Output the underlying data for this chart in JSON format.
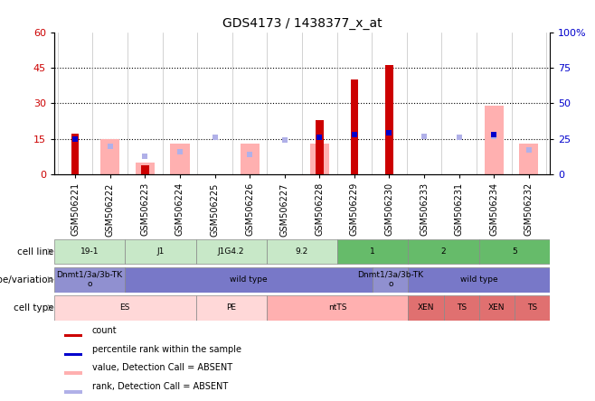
{
  "title": "GDS4173 / 1438377_x_at",
  "samples": [
    "GSM506221",
    "GSM506222",
    "GSM506223",
    "GSM506224",
    "GSM506225",
    "GSM506226",
    "GSM506227",
    "GSM506228",
    "GSM506229",
    "GSM506230",
    "GSM506233",
    "GSM506231",
    "GSM506234",
    "GSM506232"
  ],
  "count_values": [
    17,
    0,
    4,
    0,
    0,
    0,
    0,
    23,
    40,
    46,
    0,
    0,
    0,
    0
  ],
  "percentile_rank": [
    25,
    0,
    0,
    0,
    0,
    0,
    0,
    26,
    28,
    29,
    0,
    0,
    28,
    0
  ],
  "absent_value": [
    0,
    15,
    5,
    13,
    0,
    13,
    0,
    13,
    0,
    0,
    0,
    0,
    29,
    13
  ],
  "absent_rank": [
    0,
    20,
    13,
    16,
    26,
    14,
    24,
    0,
    0,
    0,
    27,
    26,
    27,
    17
  ],
  "ylim_left": [
    0,
    60
  ],
  "ylim_right": [
    0,
    100
  ],
  "yticks_left": [
    0,
    15,
    30,
    45,
    60
  ],
  "yticks_right": [
    0,
    25,
    50,
    75,
    100
  ],
  "color_count": "#cc0000",
  "color_percentile": "#0000cc",
  "color_absent_value": "#ffb0b0",
  "color_absent_rank": "#b0b0e8",
  "cell_lines": [
    {
      "label": "19-1",
      "start": 0,
      "end": 2,
      "color": "#c8e8c8"
    },
    {
      "label": "J1",
      "start": 2,
      "end": 4,
      "color": "#c8e8c8"
    },
    {
      "label": "J1G4.2",
      "start": 4,
      "end": 6,
      "color": "#c8e8c8"
    },
    {
      "label": "9.2",
      "start": 6,
      "end": 8,
      "color": "#c8e8c8"
    },
    {
      "label": "1",
      "start": 8,
      "end": 10,
      "color": "#66bb6a"
    },
    {
      "label": "2",
      "start": 10,
      "end": 12,
      "color": "#66bb6a"
    },
    {
      "label": "5",
      "start": 12,
      "end": 14,
      "color": "#66bb6a"
    }
  ],
  "genotypes": [
    {
      "label": "Dnmt1/3a/3b-TK\no",
      "start": 0,
      "end": 2,
      "color": "#9090d0"
    },
    {
      "label": "wild type",
      "start": 2,
      "end": 9,
      "color": "#7878c8"
    },
    {
      "label": "Dnmt1/3a/3b-TK\no",
      "start": 9,
      "end": 10,
      "color": "#9090d0"
    },
    {
      "label": "wild type",
      "start": 10,
      "end": 14,
      "color": "#7878c8"
    }
  ],
  "cell_types": [
    {
      "label": "ES",
      "start": 0,
      "end": 4,
      "color": "#ffd8d8"
    },
    {
      "label": "PE",
      "start": 4,
      "end": 6,
      "color": "#ffd8d8"
    },
    {
      "label": "ntTS",
      "start": 6,
      "end": 10,
      "color": "#ffb0b0"
    },
    {
      "label": "XEN",
      "start": 10,
      "end": 11,
      "color": "#e07070"
    },
    {
      "label": "TS",
      "start": 11,
      "end": 12,
      "color": "#e07070"
    },
    {
      "label": "XEN",
      "start": 12,
      "end": 13,
      "color": "#e07070"
    },
    {
      "label": "TS",
      "start": 13,
      "end": 14,
      "color": "#e07070"
    }
  ],
  "bg_color": "#ffffff",
  "tick_label_fontsize": 7,
  "row_label_fontsize": 8,
  "legend_items": [
    {
      "color": "#cc0000",
      "label": "count"
    },
    {
      "color": "#0000cc",
      "label": "percentile rank within the sample"
    },
    {
      "color": "#ffb0b0",
      "label": "value, Detection Call = ABSENT"
    },
    {
      "color": "#b0b0e8",
      "label": "rank, Detection Call = ABSENT"
    }
  ]
}
